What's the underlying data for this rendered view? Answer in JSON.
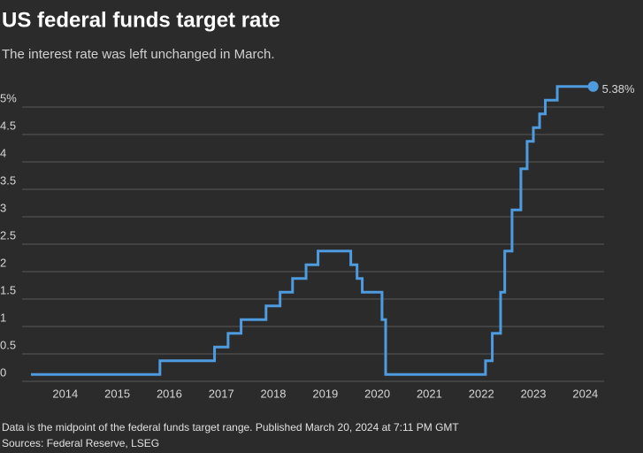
{
  "chart_data": {
    "type": "line",
    "title": "US federal funds target rate",
    "subtitle": "The interest rate was left unchanged in March.",
    "note": "Data is the midpoint of the federal funds target range. Published March 20, 2024 at 7:11 PM GMT",
    "source": "Sources: Federal Reserve, LSEG",
    "step": "post",
    "x": [
      2013.34,
      2015.82,
      2016.87,
      2017.13,
      2017.38,
      2017.86,
      2018.13,
      2018.37,
      2018.63,
      2018.86,
      2019.49,
      2019.61,
      2019.71,
      2020.09,
      2020.16,
      2022.08,
      2022.21,
      2022.37,
      2022.45,
      2022.59,
      2022.76,
      2022.88,
      2023.0,
      2023.12,
      2023.23,
      2023.46,
      2024.15
    ],
    "series": [
      {
        "name": "Federal funds target rate",
        "color": "#4e9be0",
        "values": [
          0.125,
          0.375,
          0.625,
          0.875,
          1.125,
          1.375,
          1.625,
          1.875,
          2.125,
          2.375,
          2.125,
          1.875,
          1.625,
          1.125,
          0.125,
          0.375,
          0.875,
          1.625,
          2.375,
          3.125,
          3.875,
          4.375,
          4.625,
          4.875,
          5.125,
          5.375,
          5.375
        ],
        "value_labels": [
          null,
          null,
          null,
          null,
          null,
          null,
          null,
          null,
          null,
          null,
          null,
          null,
          null,
          null,
          null,
          null,
          null,
          null,
          null,
          null,
          null,
          null,
          null,
          null,
          null,
          null,
          "5.38%"
        ]
      }
    ],
    "xlim": [
      2013.17,
      2024.36
    ],
    "xticks": [
      2014,
      2015,
      2016,
      2017,
      2018,
      2019,
      2020,
      2021,
      2022,
      2023,
      2024
    ],
    "ylim": [
      0,
      5.5
    ],
    "yticks": [
      0,
      0.5,
      1,
      1.5,
      2,
      2.5,
      3,
      3.5,
      4,
      4.5,
      {
        "value": 5,
        "label": "5%"
      }
    ],
    "grid": true
  }
}
